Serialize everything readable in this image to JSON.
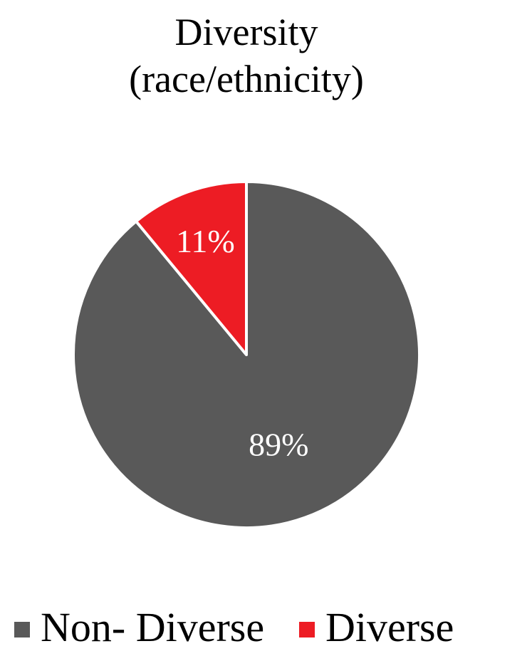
{
  "chart_data": {
    "type": "pie",
    "title": [
      "Diversity",
      "(race/ethnicity)"
    ],
    "slices": [
      {
        "name": "Non- Diverse",
        "value": 89,
        "label": "89%",
        "color": "#595959"
      },
      {
        "name": "Diverse",
        "value": 11,
        "label": "11%",
        "color": "#ED1C24"
      }
    ],
    "start_angle": "12 o'clock",
    "direction": "Diverse counter-clockwise from top, Non- Diverse clockwise",
    "legend": {
      "position": "bottom",
      "entries": [
        "Non- Diverse",
        "Diverse"
      ]
    }
  }
}
